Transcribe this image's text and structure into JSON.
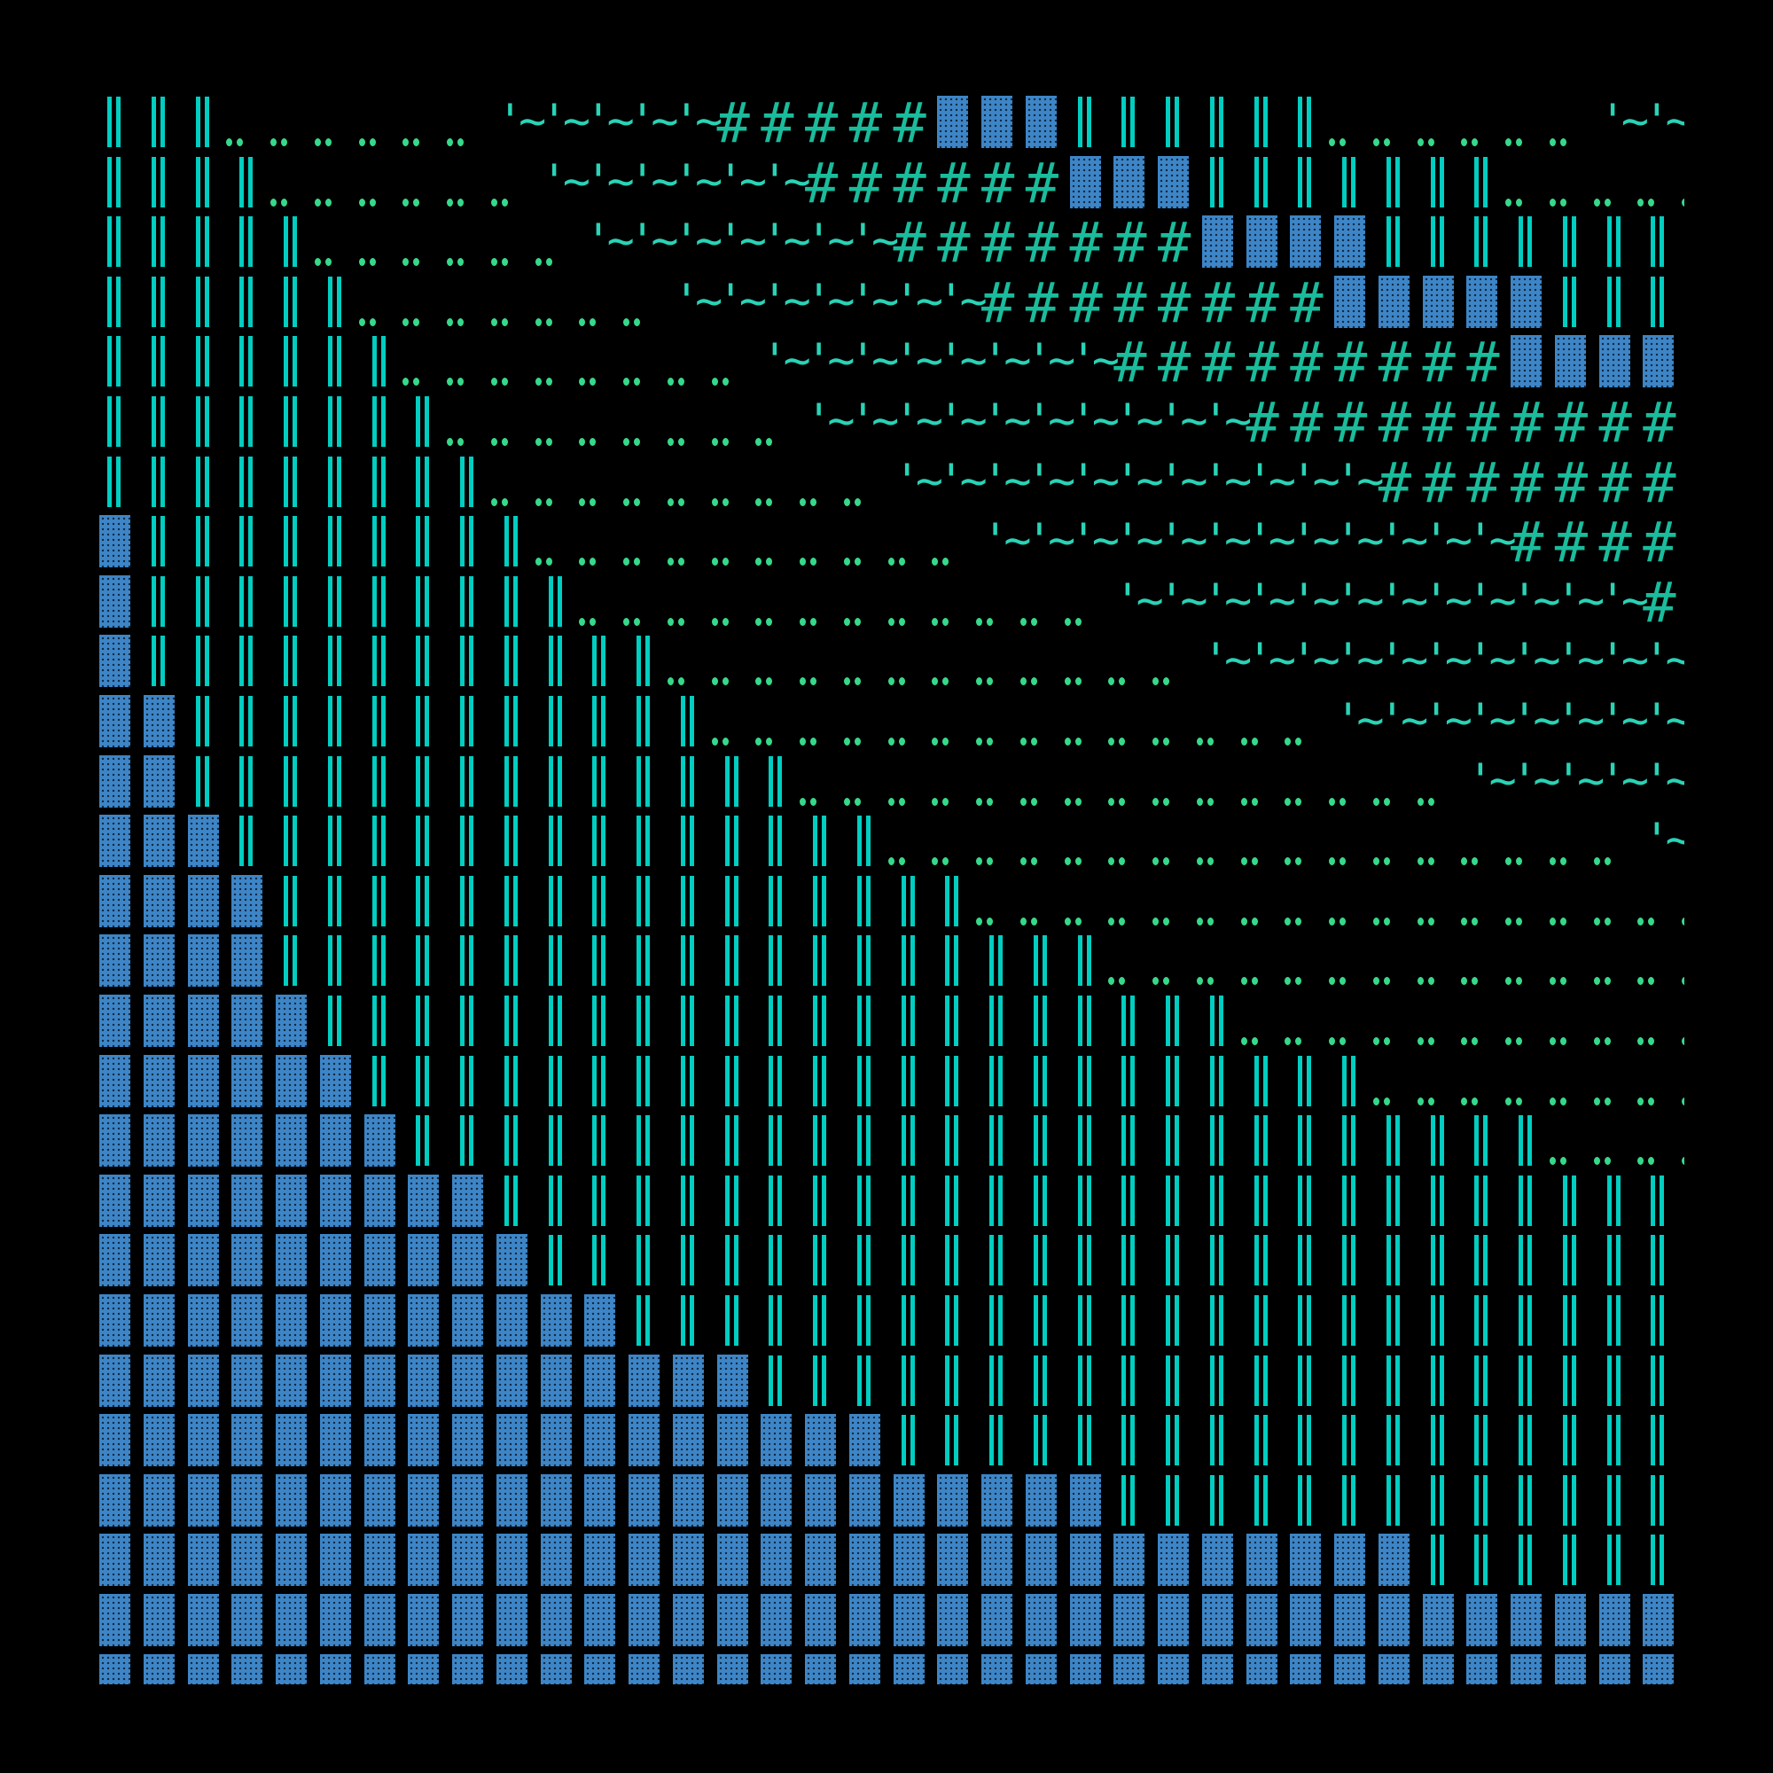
{
  "colors": {
    "background": "#000000",
    "bars": "#00cec1",
    "dots": "#36d98a",
    "wave": "#29d3b6",
    "hash": "#1abc9c",
    "block": "#3d85c6"
  },
  "glyphs": {
    "|": "bars",
    ".": "dots",
    "~": "'~",
    "#": "#",
    "B": "block"
  },
  "rows": [
    "   ....                 .....        ",
    "|||......~~~~~#####BBB||||||......~~~",
    "||||......~~~~~~######BBB|||||||.....",
    "|||||......~~~~~~~#######BBBB||||||||",
    "||||||.......~~~~~~~########BBBBB||||",
    "|||||||........~~~~~~~~#########BBBBB",
    "||||||||........~~~~~~~~~~##########B",
    "|||||||||.........~~~~~~~~~~~########",
    "B|||||||||..........~~~~~~~~~~~~#####",
    "B||||||||||............~~~~~~~~~~~~##",
    "B||||||||||||............~~~~~~~~~~~~",
    "BB||||||||||||..............~~~~~~~~~",
    "BB||||||||||||||...............~~~~~~",
    "BBB|||||||||||||||.................~~",
    "BBBB||||||||||||||||.................",
    "BBBB|||||||||||||||||||..............",
    "BBBBB|||||||||||||||||||||...........",
    "BBBBBB|||||||||||||||||||||||........",
    "BBBBBBB||||||||||||||||||||||||||....",
    "BBBBBBBBB||||||||||||||||||||||||||||",
    "BBBBBBBBBB|||||||||||||||||||||||||||",
    "BBBBBBBBBBBB|||||||||||||||||||||||||",
    "BBBBBBBBBBBBBBB||||||||||||||||||||||",
    "BBBBBBBBBBBBBBBBBB|||||||||||||||||||",
    "BBBBBBBBBBBBBBBBBBBBBBB||||||||||||||",
    "BBBBBBBBBBBBBBBBBBBBBBBBBBBBBB|||||||",
    "BBBBBBBBBBBBBBBBBBBBBBBBBBBBBBBBBBBBB",
    "BBBBBBBBBBBBBBBBBBBBBBBBBBBBBBBBBBBBB"
  ]
}
